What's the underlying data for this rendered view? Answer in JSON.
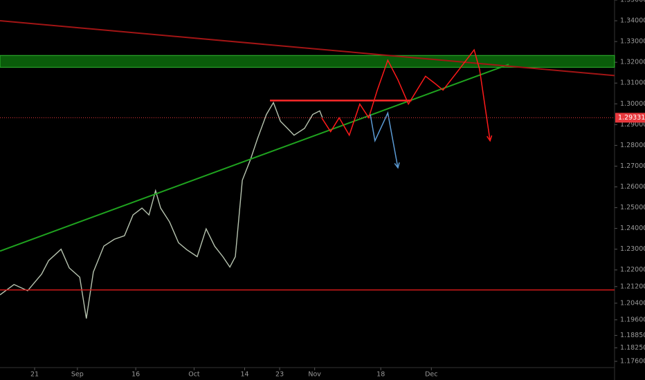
{
  "chart_data": {
    "type": "line",
    "background": "#000000",
    "xlim": [
      -8.9,
      149.1
    ],
    "ylim": [
      1.173,
      1.35
    ],
    "xticks": [
      {
        "value": 0,
        "label": "21"
      },
      {
        "value": 11,
        "label": "Sep"
      },
      {
        "value": 26,
        "label": "16"
      },
      {
        "value": 41,
        "label": "Oct"
      },
      {
        "value": 54,
        "label": "14"
      },
      {
        "value": 63,
        "label": "23"
      },
      {
        "value": 72,
        "label": "Nov"
      },
      {
        "value": 89,
        "label": "18"
      },
      {
        "value": 102,
        "label": "Dec"
      }
    ],
    "yticks": [
      {
        "value": 1.35,
        "label": "1.35000"
      },
      {
        "value": 1.34,
        "label": "1.34000"
      },
      {
        "value": 1.33,
        "label": "1.33000"
      },
      {
        "value": 1.32,
        "label": "1.32000"
      },
      {
        "value": 1.31,
        "label": "1.31000"
      },
      {
        "value": 1.3,
        "label": "1.30000"
      },
      {
        "value": 1.29,
        "label": "1.29000"
      },
      {
        "value": 1.28,
        "label": "1.28000"
      },
      {
        "value": 1.27,
        "label": "1.27000"
      },
      {
        "value": 1.26,
        "label": "1.26000"
      },
      {
        "value": 1.25,
        "label": "1.25000"
      },
      {
        "value": 1.24,
        "label": "1.24000"
      },
      {
        "value": 1.23,
        "label": "1.23000"
      },
      {
        "value": 1.22,
        "label": "1.22000"
      },
      {
        "value": 1.212,
        "label": "1.21200"
      },
      {
        "value": 1.204,
        "label": "1.20400"
      },
      {
        "value": 1.196,
        "label": "1.19600"
      },
      {
        "value": 1.1885,
        "label": "1.18850"
      },
      {
        "value": 1.1825,
        "label": "1.18250"
      },
      {
        "value": 1.176,
        "label": "1.17600"
      }
    ],
    "zones": [
      {
        "values": [
          1.3176,
          1.3233
        ],
        "color": "#0a5c0a",
        "border": "#2fb82f"
      }
    ],
    "last_price": {
      "value": 1.29331,
      "label": "1.29331",
      "color": "#e8383d"
    },
    "series": [
      {
        "color": "#b7c4b0",
        "width": 1.4,
        "arrow": false,
        "x": [
          -8.9,
          -5.3,
          -1.8,
          1.8,
          3.6,
          6.8,
          8.9,
          11.6,
          13.3,
          15.1,
          17.8,
          20.5,
          23.1,
          25.3,
          27.6,
          29.4,
          31.1,
          32.4,
          34.7,
          37.0,
          39.1,
          41.8,
          44.1,
          46.3,
          48.4,
          50.2,
          51.6,
          53.4,
          55.5,
          57.3,
          59.6,
          61.4,
          63.2,
          65.0,
          66.7,
          69.4,
          71.5,
          73.3,
          74.0
        ],
        "values": [
          1.208,
          1.213,
          1.21,
          1.218,
          1.2245,
          1.23,
          1.221,
          1.2165,
          1.1966,
          1.219,
          1.2315,
          1.2348,
          1.2365,
          1.2465,
          1.2498,
          1.2465,
          1.2582,
          1.2498,
          1.2431,
          1.2331,
          1.2298,
          1.2264,
          1.2398,
          1.2314,
          1.2264,
          1.2214,
          1.2264,
          1.2632,
          1.2732,
          1.2832,
          1.2949,
          1.3006,
          1.2916,
          1.2882,
          1.2849,
          1.2882,
          1.2949,
          1.2966,
          1.2933
        ]
      },
      {
        "color": "#1fa31f",
        "width": 2,
        "arrow": false,
        "x": [
          -8.9,
          121.9
        ],
        "values": [
          1.2291,
          1.319
        ]
      },
      {
        "color": "#a31515",
        "width": 2,
        "arrow": false,
        "x": [
          -8.9,
          149.1
        ],
        "values": [
          1.34,
          1.3136
        ]
      },
      {
        "color": "#d41a1a",
        "width": 1.5,
        "arrow": false,
        "x": [
          -8.9,
          149.1
        ],
        "values": [
          1.2104,
          1.2104
        ]
      },
      {
        "color": "#ff2a2a",
        "width": 2.5,
        "arrow": false,
        "x": [
          60.5,
          96.9
        ],
        "values": [
          1.3016,
          1.3016
        ]
      },
      {
        "color": "#ff1a1a",
        "width": 1.5,
        "arrow": true,
        "x": [
          73.8,
          76.1,
          78.3,
          80.9,
          83.6,
          85.9,
          88.1,
          90.8,
          93.4,
          96.1,
          100.5,
          102.8,
          105.0,
          108.5,
          113.0,
          114.4,
          117.1
        ],
        "values": [
          1.2933,
          1.2866,
          1.2933,
          1.2849,
          1.2999,
          1.2933,
          1.3066,
          1.321,
          1.3116,
          1.2999,
          1.3133,
          1.31,
          1.3066,
          1.315,
          1.326,
          1.3166,
          1.2822
        ]
      },
      {
        "color": "#5b9bd5",
        "width": 1.5,
        "arrow": true,
        "x": [
          86.3,
          87.5,
          90.8,
          93.4
        ],
        "values": [
          1.2949,
          1.2822,
          1.2956,
          1.2692
        ]
      }
    ]
  }
}
